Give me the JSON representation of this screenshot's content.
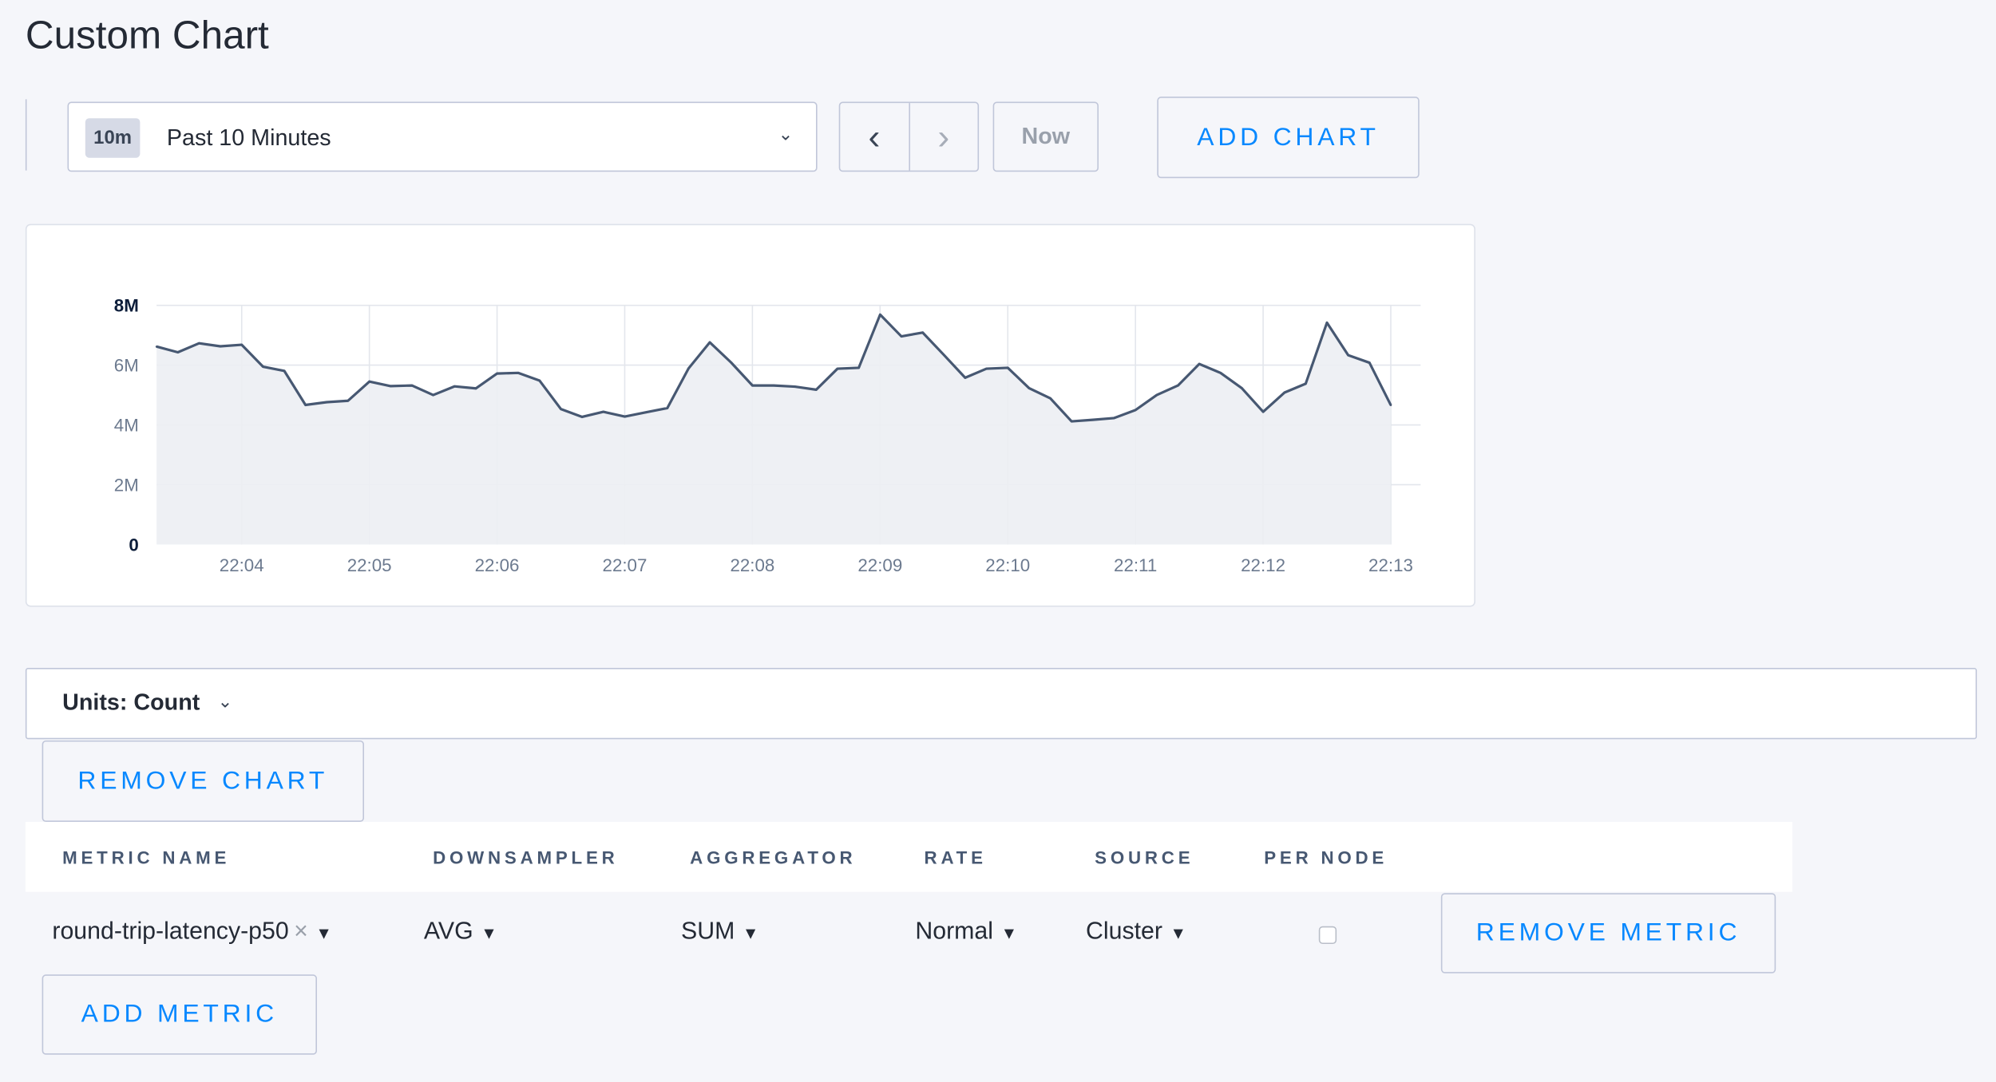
{
  "page": {
    "title": "Custom Chart"
  },
  "time_range": {
    "badge": "10m",
    "label": "Past 10 Minutes",
    "prev_icon": "chevron-left-icon",
    "next_icon": "chevron-right-icon",
    "now_label": "Now"
  },
  "toolbar": {
    "add_chart": "ADD CHART"
  },
  "units": {
    "label": "Units: Count"
  },
  "buttons": {
    "remove_chart": "REMOVE CHART",
    "add_metric": "ADD METRIC",
    "remove_metric": "REMOVE METRIC"
  },
  "table": {
    "headers": [
      "METRIC NAME",
      "DOWNSAMPLER",
      "AGGREGATOR",
      "RATE",
      "SOURCE",
      "PER NODE"
    ],
    "rows": [
      {
        "metric": "round-trip-latency-p50",
        "downsampler": "AVG",
        "aggregator": "SUM",
        "rate": "Normal",
        "source": "Cluster",
        "per_node": false
      }
    ]
  },
  "colors": {
    "accent": "#0788ff",
    "line": "#475872",
    "fill": "#eceef3"
  },
  "chart_data": {
    "type": "area",
    "x_ticks": [
      "22:04",
      "22:05",
      "22:06",
      "22:07",
      "22:08",
      "22:09",
      "22:10",
      "22:11",
      "22:12",
      "22:13"
    ],
    "y_ticks": [
      "0",
      "2M",
      "4M",
      "6M",
      "8M"
    ],
    "ylim": [
      0,
      8000000
    ],
    "x_start": "22:03:20",
    "x_end": "22:13:00",
    "x_interval_seconds": 10,
    "grid": true,
    "values_millions": [
      6.62,
      6.43,
      6.73,
      6.63,
      6.68,
      5.95,
      5.81,
      4.67,
      4.76,
      4.81,
      5.45,
      5.3,
      5.32,
      5.0,
      5.29,
      5.22,
      5.72,
      5.74,
      5.48,
      4.53,
      4.27,
      4.44,
      4.28,
      4.42,
      4.56,
      5.89,
      6.76,
      6.09,
      5.32,
      5.32,
      5.28,
      5.18,
      5.88,
      5.91,
      7.69,
      6.96,
      7.09,
      6.34,
      5.58,
      5.88,
      5.91,
      5.23,
      4.89,
      4.12,
      4.17,
      4.23,
      4.5,
      5.0,
      5.32,
      6.04,
      5.74,
      5.23,
      4.44,
      5.08,
      5.38,
      7.42,
      6.33,
      6.08,
      4.66
    ]
  }
}
